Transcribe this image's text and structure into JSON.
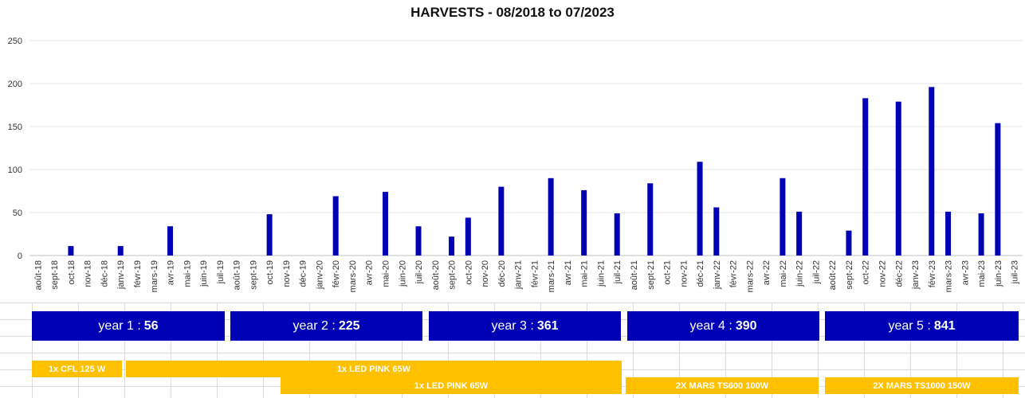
{
  "chart_data": {
    "type": "bar",
    "title": "HARVESTS - 08/2018 to 07/2023",
    "xlabel": "",
    "ylabel": "",
    "ylim": [
      0,
      250
    ],
    "yticks": [
      0,
      50,
      100,
      150,
      200,
      250
    ],
    "grid": true,
    "bar_color": "#0000b4",
    "categories": [
      "août-18",
      "sept-18",
      "oct-18",
      "nov-18",
      "déc-18",
      "janv-19",
      "févr-19",
      "mars-19",
      "avr-19",
      "mai-19",
      "juin-19",
      "juil-19",
      "août-19",
      "sept-19",
      "oct-19",
      "nov-19",
      "déc-19",
      "janv-20",
      "févr-20",
      "mars-20",
      "avr-20",
      "mai-20",
      "juin-20",
      "juil-20",
      "août-20",
      "sept-20",
      "oct-20",
      "nov-20",
      "déc-20",
      "janv-21",
      "févr-21",
      "mars-21",
      "avr-21",
      "mai-21",
      "juin-21",
      "juil-21",
      "août-21",
      "sept-21",
      "oct-21",
      "nov-21",
      "déc-21",
      "janv-22",
      "févr-22",
      "mars-22",
      "avr-22",
      "mai-22",
      "juin-22",
      "juil-22",
      "août-22",
      "sept-22",
      "oct-22",
      "nov-22",
      "déc-22",
      "janv-23",
      "févr-23",
      "mars-23",
      "avr-23",
      "mai-23",
      "juin-23",
      "juil-23"
    ],
    "values": [
      0,
      0,
      11,
      0,
      0,
      11,
      0,
      0,
      34,
      0,
      0,
      0,
      0,
      0,
      48,
      0,
      0,
      0,
      69,
      0,
      0,
      74,
      0,
      34,
      0,
      22,
      44,
      0,
      80,
      0,
      0,
      90,
      0,
      76,
      0,
      49,
      0,
      84,
      0,
      0,
      109,
      56,
      0,
      0,
      0,
      90,
      51,
      0,
      0,
      29,
      183,
      0,
      179,
      0,
      196,
      51,
      0,
      49,
      154,
      0
    ]
  },
  "years": [
    {
      "label": "year 1 : ",
      "value": "56"
    },
    {
      "label": "year 2 : ",
      "value": "225"
    },
    {
      "label": "year 3 : ",
      "value": "361"
    },
    {
      "label": "year 4 : ",
      "value": "390"
    },
    {
      "label": "year 5 : ",
      "value": "841"
    }
  ],
  "lamps": [
    "1x CFL 125 W",
    "1x LED PINK 65W",
    "1x LED PINK 65W",
    "2X MARS TS600 100W",
    "2X MARS TS1000 150W"
  ],
  "colors": {
    "year_box": "#0000b4",
    "lamp_bar": "#ffc000"
  }
}
